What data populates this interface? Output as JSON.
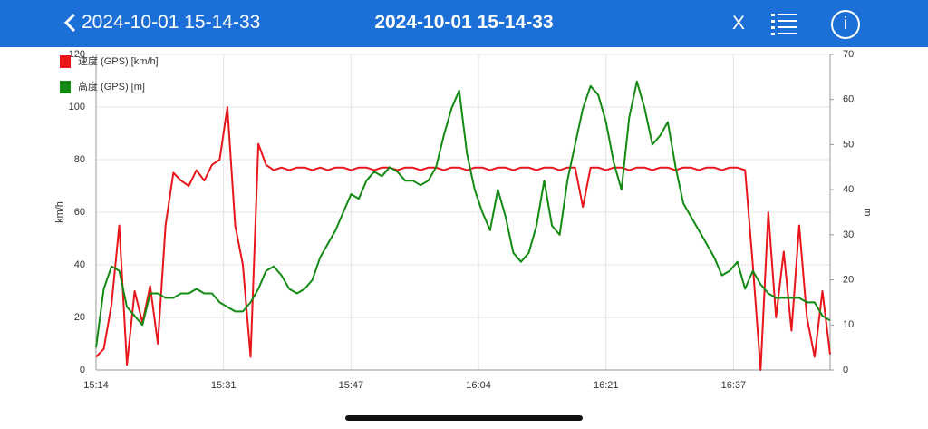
{
  "header": {
    "back_label": "2024-10-01 15-14-33",
    "title": "2024-10-01 15-14-33",
    "close": "X",
    "info": "i"
  },
  "chart_data": {
    "type": "line",
    "ylabel": "km/h",
    "y2label": "m",
    "x": [
      914,
      915,
      916,
      917,
      918,
      919,
      920,
      921,
      922,
      923,
      924,
      925,
      926,
      927,
      928,
      929,
      930,
      931,
      932,
      933,
      934,
      935,
      936,
      937,
      938,
      939,
      940,
      941,
      942,
      943,
      944,
      945,
      946,
      947,
      948,
      949,
      950,
      951,
      952,
      953,
      954,
      955,
      956,
      957,
      958,
      959,
      960,
      961,
      962,
      963,
      964,
      965,
      966,
      967,
      968,
      969,
      970,
      971,
      972,
      973,
      974,
      975,
      976,
      977,
      978,
      979,
      980,
      981,
      982,
      983,
      984,
      985,
      986,
      987,
      988,
      989,
      990,
      991,
      992,
      993,
      994,
      995,
      996,
      997,
      998,
      999,
      1000,
      1001,
      1002,
      1003,
      1004,
      1005,
      1006,
      1007,
      1008,
      1009
    ],
    "xlim": [
      914,
      1009
    ],
    "xticks": [
      {
        "value": 914,
        "label": "15:14"
      },
      {
        "value": 930.5,
        "label": "15:31"
      },
      {
        "value": 947,
        "label": "15:47"
      },
      {
        "value": 963.5,
        "label": "16:04"
      },
      {
        "value": 980,
        "label": "16:21"
      },
      {
        "value": 996.5,
        "label": "16:37"
      }
    ],
    "ylim": [
      0,
      120
    ],
    "yticks": [
      0,
      20,
      40,
      60,
      80,
      100,
      120
    ],
    "y2lim": [
      0,
      70
    ],
    "y2ticks": [
      0,
      10,
      20,
      30,
      40,
      50,
      60,
      70
    ],
    "grid": true,
    "legend": "top-left",
    "series": [
      {
        "name": "速度 (GPS) [km/h]",
        "color": "#e8161b",
        "values": [
          5,
          8,
          25,
          55,
          2,
          30,
          18,
          32,
          10,
          55,
          75,
          72,
          70,
          76,
          72,
          78,
          80,
          100,
          55,
          40,
          5,
          86,
          78,
          76,
          77,
          76,
          77,
          77,
          76,
          77,
          76,
          77,
          77,
          76,
          77,
          77,
          76,
          77,
          77,
          76,
          77,
          77,
          76,
          77,
          77,
          76,
          77,
          77,
          76,
          77,
          77,
          76,
          77,
          77,
          76,
          77,
          77,
          76,
          77,
          77,
          76,
          77,
          77,
          62,
          77,
          77,
          76,
          77,
          77,
          76,
          77,
          77,
          76,
          77,
          77,
          76,
          77,
          77,
          76,
          77,
          77,
          76,
          77,
          77,
          76,
          40,
          0,
          60,
          20,
          45,
          15,
          55,
          20,
          5,
          30,
          6
        ]
      },
      {
        "name": "高度 (GPS) [m]",
        "color": "#138a13",
        "axis": "y2",
        "values": [
          5,
          18,
          23,
          22,
          14,
          12,
          10,
          17,
          17,
          16,
          16,
          17,
          17,
          18,
          17,
          17,
          15,
          14,
          13,
          13,
          15,
          18,
          22,
          23,
          21,
          18,
          17,
          18,
          20,
          25,
          28,
          31,
          35,
          39,
          38,
          42,
          44,
          43,
          45,
          44,
          42,
          42,
          41,
          42,
          45,
          52,
          58,
          62,
          48,
          40,
          35,
          31,
          40,
          34,
          26,
          24,
          26,
          32,
          42,
          32,
          30,
          42,
          50,
          58,
          63,
          61,
          55,
          46,
          40,
          56,
          64,
          58,
          50,
          52,
          55,
          45,
          37,
          34,
          31,
          28,
          25,
          21,
          22,
          24,
          18,
          22,
          19,
          17,
          16,
          16,
          16,
          16,
          15,
          15,
          12,
          11
        ]
      }
    ]
  }
}
